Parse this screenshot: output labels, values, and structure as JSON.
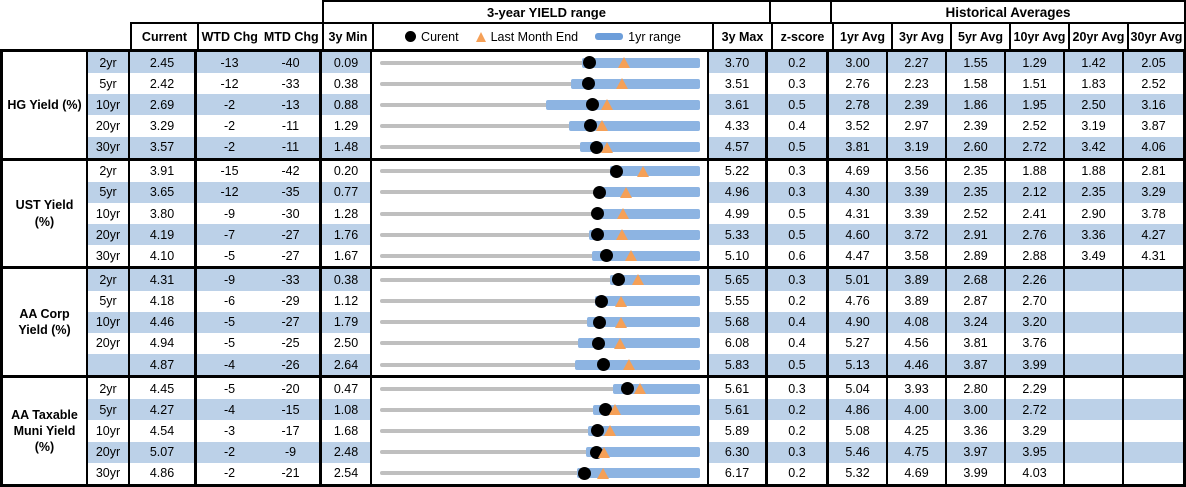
{
  "header": {
    "range_section_title": "3-year YIELD range",
    "hist_section_title": "Historical Averages",
    "current": "Current",
    "wtd": "WTD Chg",
    "mtd": "MTD Chg",
    "min": "3y Min",
    "max": "3y Max",
    "zscore": "z-score",
    "avg_cols": [
      "1yr Avg",
      "3yr Avg",
      "5yr Avg",
      "10yr Avg",
      "20yr Avg",
      "30yr Avg"
    ],
    "legend": {
      "current": "Curent",
      "last_month": "Last Month End",
      "range": "1yr range"
    }
  },
  "colors": {
    "row_stripe": "#bcd1e8",
    "range_bar": "#8db4e2",
    "track": "#bfbfbf",
    "marker_dot": "#000000",
    "marker_triangle": "#f5a057",
    "legend_dash": "#6d9eda",
    "border": "#000000",
    "text": "#000000"
  },
  "chart_data": {
    "type": "table",
    "embedded_chart_type": "dot-range",
    "title": "3-year YIELD range",
    "x_mapping": "each row scaled between its 3y Min and 3y Max",
    "yr1_high_equals_max_3y": true,
    "legend_entries": [
      "Curent",
      "Last Month End",
      "1yr range"
    ],
    "columns": [
      "Current",
      "WTD Chg",
      "MTD Chg",
      "3y Min",
      "3y Max",
      "z-score",
      "1yr Avg",
      "3yr Avg",
      "5yr Avg",
      "10yr Avg",
      "20yr Avg",
      "30yr Avg"
    ],
    "groups": [
      {
        "label": "HG Yield (%)",
        "rows": [
          {
            "tenor": "2yr",
            "current": "2.45",
            "wtd_chg": "-13",
            "mtd_chg": "-40",
            "min_3y": "0.09",
            "max_3y": "3.70",
            "z_score": "0.2",
            "last_month_end": 2.85,
            "yr1_low": 2.37,
            "avgs": [
              "3.00",
              "2.27",
              "1.55",
              "1.29",
              "1.42",
              "2.05"
            ]
          },
          {
            "tenor": "5yr",
            "current": "2.42",
            "wtd_chg": "-12",
            "mtd_chg": "-33",
            "min_3y": "0.38",
            "max_3y": "3.51",
            "z_score": "0.3",
            "last_month_end": 2.75,
            "yr1_low": 2.25,
            "avgs": [
              "2.76",
              "2.23",
              "1.58",
              "1.51",
              "1.83",
              "2.52"
            ]
          },
          {
            "tenor": "10yr",
            "current": "2.69",
            "wtd_chg": "-2",
            "mtd_chg": "-13",
            "min_3y": "0.88",
            "max_3y": "3.61",
            "z_score": "0.5",
            "last_month_end": 2.82,
            "yr1_low": 2.3,
            "avgs": [
              "2.78",
              "2.39",
              "1.86",
              "1.95",
              "2.50",
              "3.16"
            ]
          },
          {
            "tenor": "20yr",
            "current": "3.29",
            "wtd_chg": "-2",
            "mtd_chg": "-11",
            "min_3y": "1.29",
            "max_3y": "4.33",
            "z_score": "0.4",
            "last_month_end": 3.4,
            "yr1_low": 3.09,
            "avgs": [
              "3.52",
              "2.97",
              "2.39",
              "2.52",
              "3.19",
              "3.87"
            ]
          },
          {
            "tenor": "30yr",
            "current": "3.57",
            "wtd_chg": "-2",
            "mtd_chg": "-11",
            "min_3y": "1.48",
            "max_3y": "4.57",
            "z_score": "0.5",
            "last_month_end": 3.68,
            "yr1_low": 3.41,
            "avgs": [
              "3.81",
              "3.19",
              "2.60",
              "2.72",
              "3.42",
              "4.06"
            ]
          }
        ]
      },
      {
        "label": "UST Yield (%)",
        "rows": [
          {
            "tenor": "2yr",
            "current": "3.91",
            "wtd_chg": "-15",
            "mtd_chg": "-42",
            "min_3y": "0.20",
            "max_3y": "5.22",
            "z_score": "0.3",
            "last_month_end": 4.33,
            "yr1_low": 3.81,
            "avgs": [
              "4.69",
              "3.56",
              "2.35",
              "1.88",
              "1.88",
              "2.81"
            ]
          },
          {
            "tenor": "5yr",
            "current": "3.65",
            "wtd_chg": "-12",
            "mtd_chg": "-35",
            "min_3y": "0.77",
            "max_3y": "4.96",
            "z_score": "0.3",
            "last_month_end": 4.0,
            "yr1_low": 3.6,
            "avgs": [
              "4.30",
              "3.39",
              "2.35",
              "2.12",
              "2.35",
              "3.29"
            ]
          },
          {
            "tenor": "10yr",
            "current": "3.80",
            "wtd_chg": "-9",
            "mtd_chg": "-30",
            "min_3y": "1.28",
            "max_3y": "4.99",
            "z_score": "0.5",
            "last_month_end": 4.1,
            "yr1_low": 3.75,
            "avgs": [
              "4.31",
              "3.39",
              "2.52",
              "2.41",
              "2.90",
              "3.78"
            ]
          },
          {
            "tenor": "20yr",
            "current": "4.19",
            "wtd_chg": "-7",
            "mtd_chg": "-27",
            "min_3y": "1.76",
            "max_3y": "5.33",
            "z_score": "0.5",
            "last_month_end": 4.46,
            "yr1_low": 4.09,
            "avgs": [
              "4.60",
              "3.72",
              "2.91",
              "2.76",
              "3.36",
              "4.27"
            ]
          },
          {
            "tenor": "30yr",
            "current": "4.10",
            "wtd_chg": "-5",
            "mtd_chg": "-27",
            "min_3y": "1.67",
            "max_3y": "5.10",
            "z_score": "0.6",
            "last_month_end": 4.37,
            "yr1_low": 3.94,
            "avgs": [
              "4.47",
              "3.58",
              "2.89",
              "2.88",
              "3.49",
              "4.31"
            ]
          }
        ]
      },
      {
        "label": "AA Corp Yield (%)",
        "rows": [
          {
            "tenor": "2yr",
            "current": "4.31",
            "wtd_chg": "-9",
            "mtd_chg": "-33",
            "min_3y": "0.38",
            "max_3y": "5.65",
            "z_score": "0.3",
            "last_month_end": 4.64,
            "yr1_low": 4.17,
            "avgs": [
              "5.01",
              "3.89",
              "2.68",
              "2.26",
              "",
              ""
            ]
          },
          {
            "tenor": "5yr",
            "current": "4.18",
            "wtd_chg": "-6",
            "mtd_chg": "-29",
            "min_3y": "1.12",
            "max_3y": "5.55",
            "z_score": "0.2",
            "last_month_end": 4.47,
            "yr1_low": 4.1,
            "avgs": [
              "4.76",
              "3.89",
              "2.87",
              "2.70",
              "",
              ""
            ]
          },
          {
            "tenor": "10yr",
            "current": "4.46",
            "wtd_chg": "-5",
            "mtd_chg": "-27",
            "min_3y": "1.79",
            "max_3y": "5.68",
            "z_score": "0.4",
            "last_month_end": 4.73,
            "yr1_low": 4.31,
            "avgs": [
              "4.90",
              "4.08",
              "3.24",
              "3.20",
              "",
              ""
            ]
          },
          {
            "tenor": "20yr",
            "current": "4.94",
            "wtd_chg": "-5",
            "mtd_chg": "-25",
            "min_3y": "2.50",
            "max_3y": "6.08",
            "z_score": "0.4",
            "last_month_end": 5.19,
            "yr1_low": 4.71,
            "avgs": [
              "5.27",
              "4.56",
              "3.81",
              "3.76",
              "",
              ""
            ]
          },
          {
            "tenor": "",
            "current": "4.87",
            "wtd_chg": "-4",
            "mtd_chg": "-26",
            "min_3y": "2.64",
            "max_3y": "5.83",
            "z_score": "0.5",
            "last_month_end": 5.13,
            "yr1_low": 4.58,
            "avgs": [
              "5.13",
              "4.46",
              "3.87",
              "3.99",
              "",
              ""
            ]
          }
        ]
      },
      {
        "label": "AA Taxable Muni Yield (%)",
        "rows": [
          {
            "tenor": "2yr",
            "current": "4.45",
            "wtd_chg": "-5",
            "mtd_chg": "-20",
            "min_3y": "0.47",
            "max_3y": "5.61",
            "z_score": "0.3",
            "last_month_end": 4.65,
            "yr1_low": 4.22,
            "avgs": [
              "5.04",
              "3.93",
              "2.80",
              "2.29",
              "",
              ""
            ]
          },
          {
            "tenor": "5yr",
            "current": "4.27",
            "wtd_chg": "-4",
            "mtd_chg": "-15",
            "min_3y": "1.08",
            "max_3y": "5.61",
            "z_score": "0.2",
            "last_month_end": 4.42,
            "yr1_low": 4.1,
            "avgs": [
              "4.86",
              "4.00",
              "3.00",
              "2.72",
              "",
              ""
            ]
          },
          {
            "tenor": "10yr",
            "current": "4.54",
            "wtd_chg": "-3",
            "mtd_chg": "-17",
            "min_3y": "1.68",
            "max_3y": "5.89",
            "z_score": "0.2",
            "last_month_end": 4.71,
            "yr1_low": 4.41,
            "avgs": [
              "5.08",
              "4.25",
              "3.36",
              "3.29",
              "",
              ""
            ]
          },
          {
            "tenor": "20yr",
            "current": "5.07",
            "wtd_chg": "-2",
            "mtd_chg": "-9",
            "min_3y": "2.48",
            "max_3y": "6.30",
            "z_score": "0.3",
            "last_month_end": 5.16,
            "yr1_low": 4.94,
            "avgs": [
              "5.46",
              "4.75",
              "3.97",
              "3.95",
              "",
              ""
            ]
          },
          {
            "tenor": "30yr",
            "current": "4.86",
            "wtd_chg": "-2",
            "mtd_chg": "-21",
            "min_3y": "2.54",
            "max_3y": "6.17",
            "z_score": "0.2",
            "last_month_end": 5.07,
            "yr1_low": 4.77,
            "avgs": [
              "5.32",
              "4.69",
              "3.99",
              "4.03",
              "",
              ""
            ]
          }
        ]
      }
    ]
  }
}
